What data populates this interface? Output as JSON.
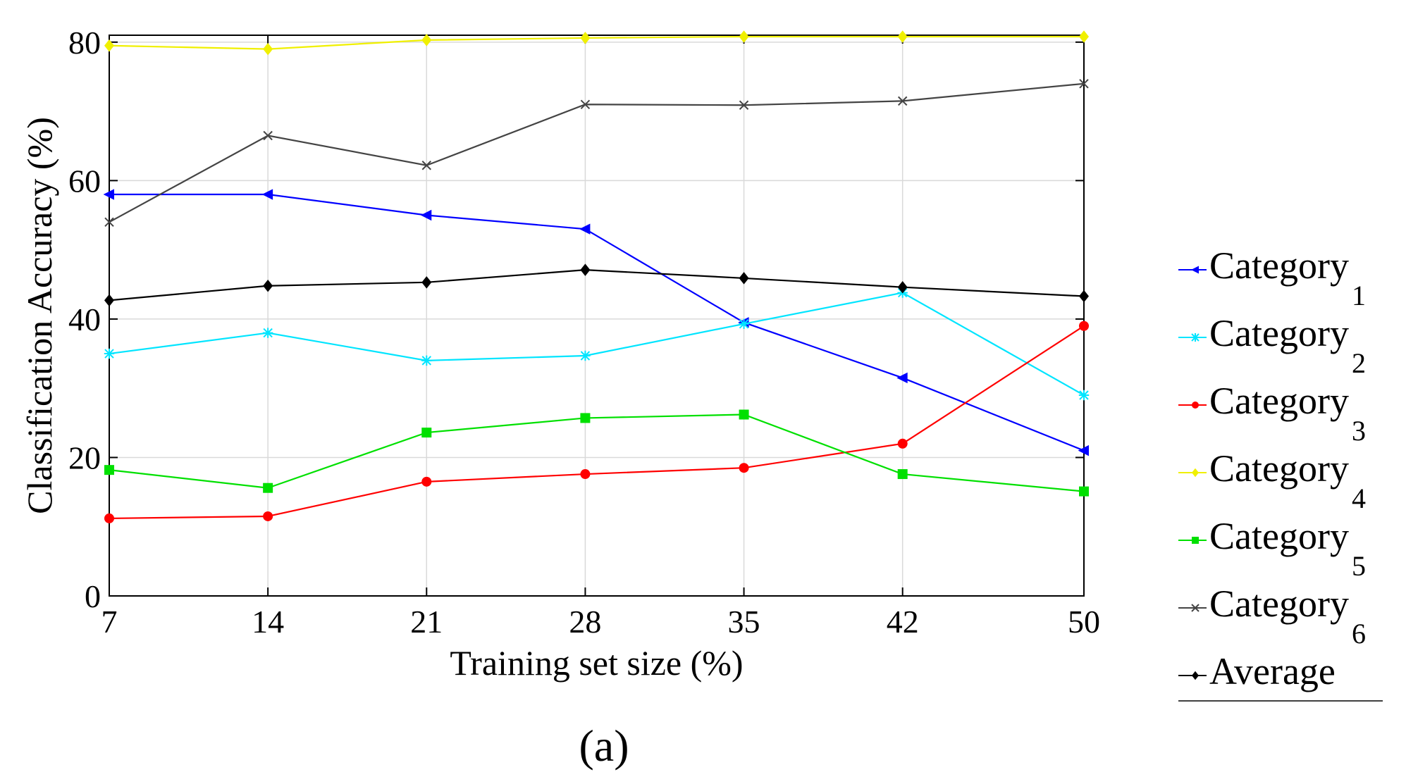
{
  "chart_data": {
    "type": "line",
    "title": "",
    "xlabel": "Training set size (%)",
    "ylabel": "Classification Accuracy (%)",
    "x": [
      7,
      14,
      21,
      28,
      35,
      42,
      50
    ],
    "x_tick_labels": [
      "7",
      "14",
      "21",
      "28",
      "35",
      "42",
      "50"
    ],
    "y_ticks": [
      0,
      20,
      40,
      60,
      80
    ],
    "y_tick_labels": [
      "0",
      "20",
      "40",
      "60",
      "80"
    ],
    "ylim": [
      0,
      81
    ],
    "grid": true,
    "legend_position": "right",
    "panel_label": "(a)",
    "series": [
      {
        "name": "Category",
        "subscript": "1",
        "color": "#0000ff",
        "marker": "triangle-left",
        "values": [
          58,
          58,
          55,
          53,
          39.5,
          31.5,
          21
        ]
      },
      {
        "name": "Category",
        "subscript": "2",
        "color": "#00e5ff",
        "marker": "star",
        "values": [
          35,
          38,
          34,
          34.7,
          39.3,
          43.8,
          29
        ]
      },
      {
        "name": "Category",
        "subscript": "3",
        "color": "#ff0000",
        "marker": "circle",
        "values": [
          11.2,
          11.5,
          16.5,
          17.6,
          18.5,
          22,
          39
        ]
      },
      {
        "name": "Category",
        "subscript": "4",
        "color": "#f0f000",
        "marker": "diamond",
        "values": [
          79.5,
          79,
          80.3,
          80.6,
          80.8,
          80.8,
          80.8
        ]
      },
      {
        "name": "Category",
        "subscript": "5",
        "color": "#00e000",
        "marker": "square",
        "values": [
          18.2,
          15.6,
          23.6,
          25.7,
          26.2,
          17.6,
          15.1
        ]
      },
      {
        "name": "Category",
        "subscript": "6",
        "color": "#444444",
        "marker": "x",
        "values": [
          54,
          66.5,
          62.2,
          71,
          70.9,
          71.5,
          74
        ]
      },
      {
        "name": "Average",
        "subscript": "",
        "color": "#000000",
        "marker": "diamond",
        "values": [
          42.7,
          44.8,
          45.3,
          47.1,
          45.9,
          44.6,
          43.3
        ]
      }
    ]
  }
}
